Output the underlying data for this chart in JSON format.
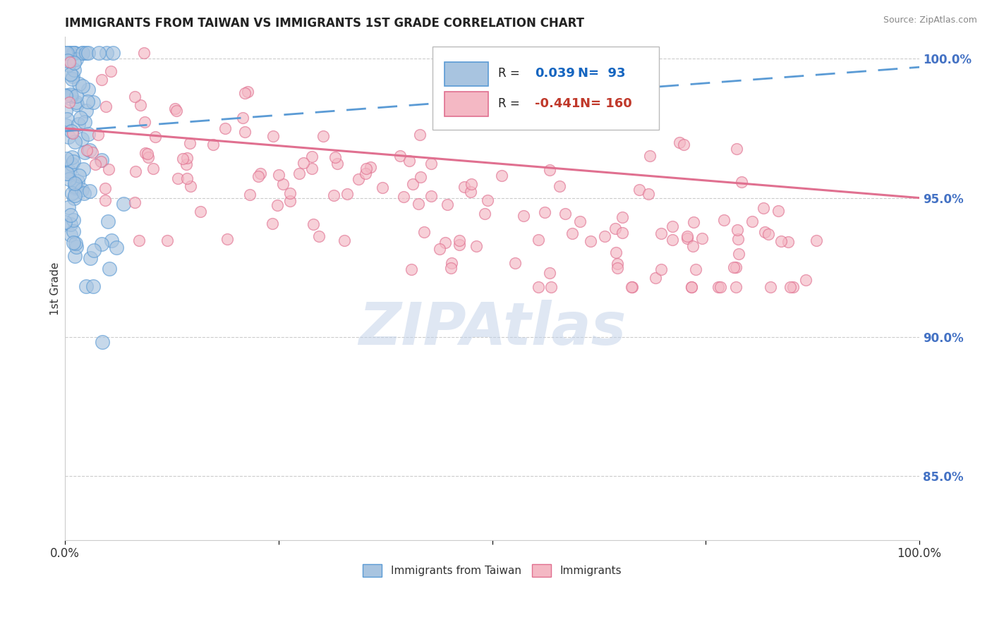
{
  "title": "IMMIGRANTS FROM TAIWAN VS IMMIGRANTS 1ST GRADE CORRELATION CHART",
  "source_text": "Source: ZipAtlas.com",
  "watermark": "ZIPAtlas",
  "ylabel": "1st Grade",
  "x_min": 0.0,
  "x_max": 1.0,
  "y_min": 0.827,
  "y_max": 1.008,
  "y_ticks": [
    0.85,
    0.9,
    0.95,
    1.0
  ],
  "y_tick_labels": [
    "85.0%",
    "90.0%",
    "95.0%",
    "100.0%"
  ],
  "R1": 0.039,
  "N1": 93,
  "R2": -0.441,
  "N2": 160,
  "legend_label1": "Immigrants from Taiwan",
  "legend_label2": "Immigrants",
  "title_fontsize": 12,
  "title_color": "#222222",
  "axis_label_color": "#333333",
  "right_tick_color": "#4472c4",
  "legend_R_color1": "#1565c0",
  "legend_R_color2": "#c0392b",
  "blue_fill": "#a8c4e0",
  "blue_edge": "#5b9bd5",
  "pink_fill": "#f4b8c4",
  "pink_edge": "#e07090",
  "blue_line_color": "#5b9bd5",
  "pink_line_color": "#e07090",
  "background_color": "#ffffff",
  "grid_color": "#cccccc",
  "watermark_color": "#c0d0e8",
  "blue_trend_start": 0.974,
  "blue_trend_end": 0.997,
  "pink_trend_start": 0.975,
  "pink_trend_end": 0.95
}
